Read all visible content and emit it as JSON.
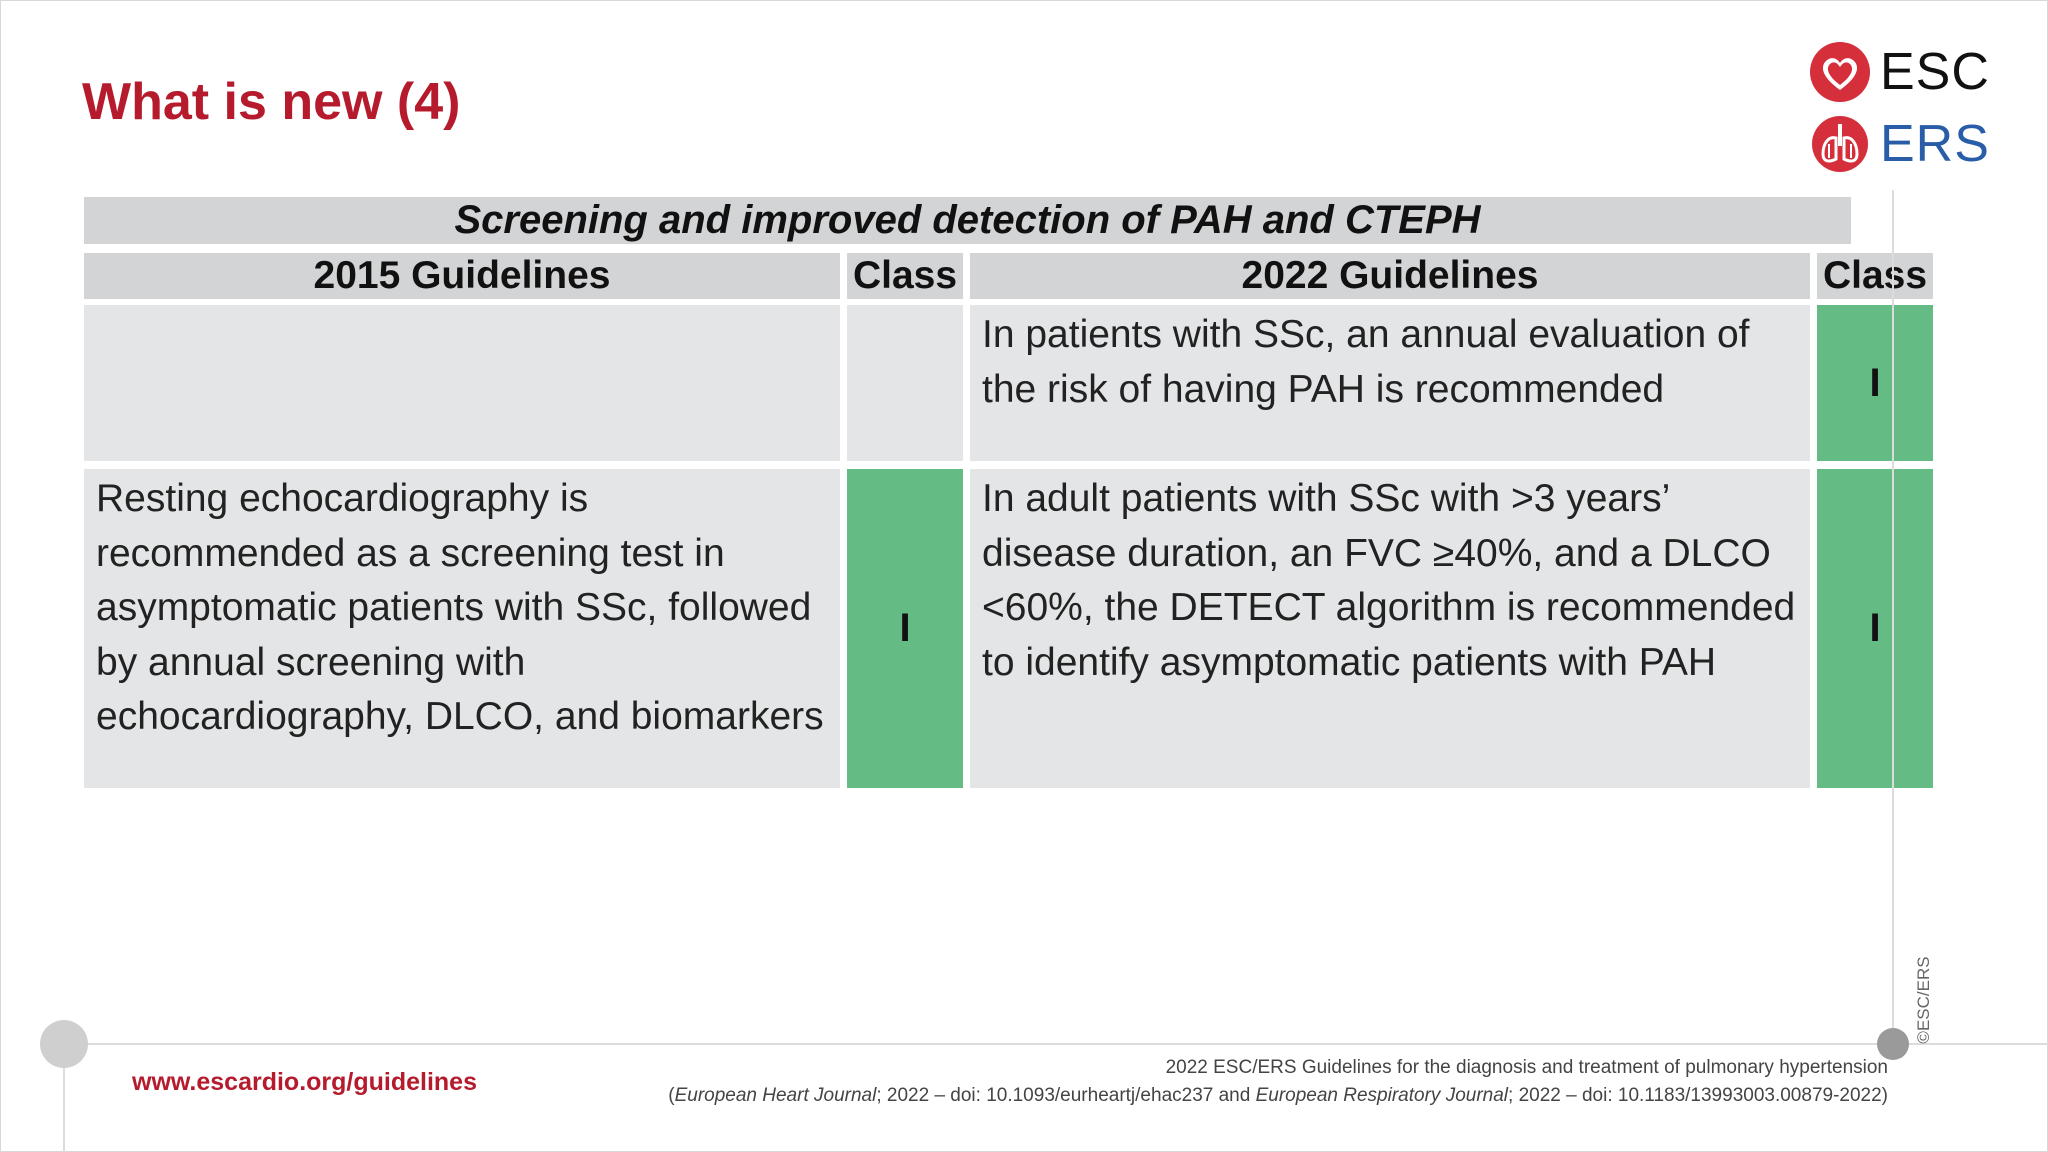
{
  "slide": {
    "title": "What is new (4)"
  },
  "logos": {
    "esc_text": "ESC",
    "ers_text": "ERS",
    "esc_icon": "heart-icon",
    "ers_icon": "lungs-icon",
    "esc_color": "#d42f3a",
    "ers_color": "#d42f3a"
  },
  "table": {
    "banner": "Screening and improved detection of PAH and CTEPH",
    "headers": {
      "old_guidelines": "2015 Guidelines",
      "old_class": "Class",
      "new_guidelines": "2022 Guidelines",
      "new_class": "Class"
    },
    "rows": [
      {
        "old_text": "",
        "old_class": "",
        "new_text": "In patients with SSc, an annual evaluation of the risk of having PAH is recommended",
        "new_class": "I"
      },
      {
        "old_text": "Resting echocardiography is recommended as a screening test in asymptomatic patients with SSc, followed by annual screening with echocardiography, DLCO, and biomarkers",
        "old_class": "I",
        "new_text": "In adult patients with SSc with >3 years’ disease duration, an FVC ≥40%, and a DLCO <60%, the DETECT algorithm is recommended to identify asymptomatic patients with PAH",
        "new_class": "I"
      }
    ],
    "colors": {
      "header_bg": "#d3d4d6",
      "cell_bg": "#e4e5e6",
      "class_i_bg": "#64bb84"
    }
  },
  "footer": {
    "url": "www.escardio.org/guidelines",
    "copyright": "©ESC/ERS",
    "citation_line1": "2022 ESC/ERS Guidelines for the diagnosis and treatment of pulmonary hypertension",
    "citation_line2_open": "(",
    "journal1": "European Heart Journal",
    "citation_line2_mid": "; 2022 – doi: 10.1093/eurheartj/ehac237 and ",
    "journal2": "European Respiratory Journal",
    "citation_line2_end": "; 2022 – doi: 10.1183/13993003.00879-2022)"
  },
  "brand_color": "#b51b2d"
}
